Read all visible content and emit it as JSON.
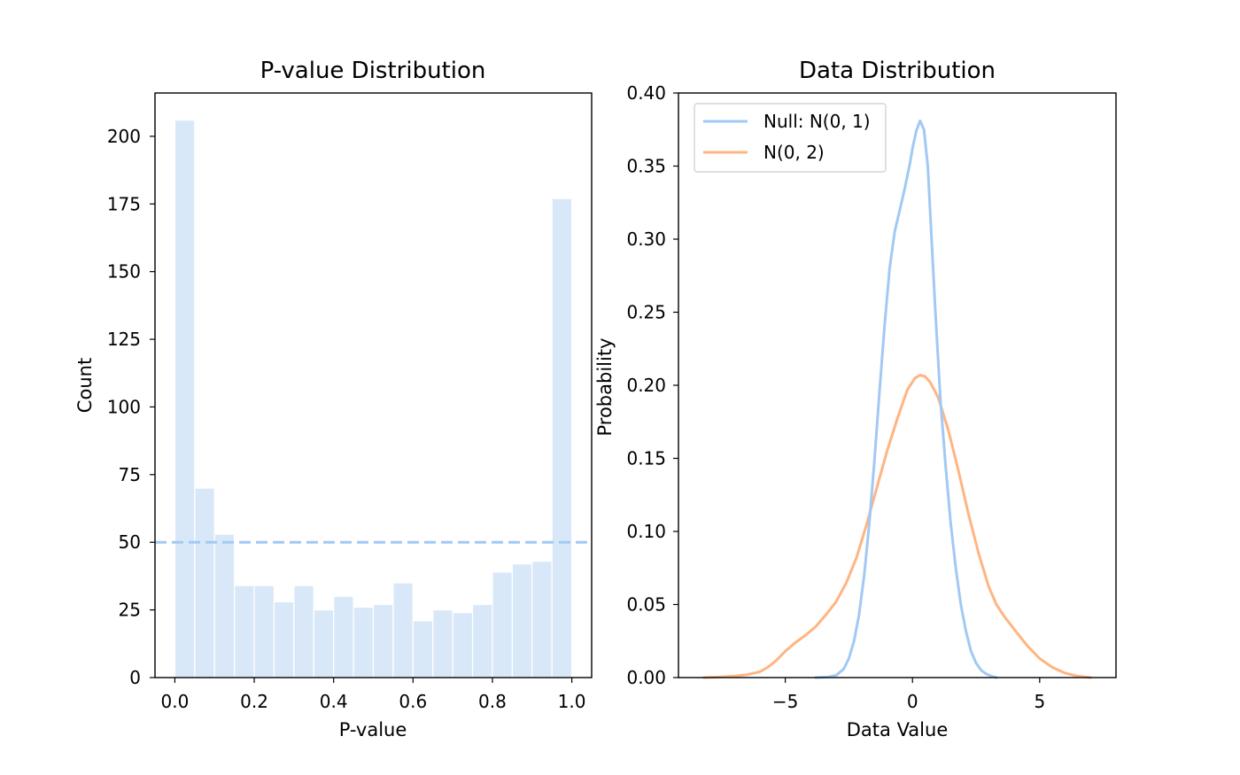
{
  "chart_data": [
    {
      "type": "bar",
      "title": "P-value Distribution",
      "xlabel": "P-value",
      "ylabel": "Count",
      "xlim": [
        -0.05,
        1.05
      ],
      "ylim": [
        0,
        216
      ],
      "xticks": [
        "0.0",
        "0.2",
        "0.4",
        "0.6",
        "0.8",
        "1.0"
      ],
      "xtick_values": [
        0.0,
        0.2,
        0.4,
        0.6,
        0.8,
        1.0
      ],
      "yticks": [
        "0",
        "25",
        "50",
        "75",
        "100",
        "125",
        "150",
        "175",
        "200"
      ],
      "ytick_values": [
        0,
        25,
        50,
        75,
        100,
        125,
        150,
        175,
        200
      ],
      "bin_edges": [
        0.0,
        0.05,
        0.1,
        0.15,
        0.2,
        0.25,
        0.3,
        0.35,
        0.4,
        0.45,
        0.5,
        0.55,
        0.6,
        0.65,
        0.7,
        0.75,
        0.8,
        0.85,
        0.9,
        0.95,
        1.0
      ],
      "values": [
        206,
        70,
        53,
        34,
        34,
        28,
        34,
        25,
        30,
        26,
        27,
        35,
        21,
        25,
        24,
        27,
        39,
        42,
        43,
        177
      ],
      "reference_line": {
        "y": 50,
        "style": "dashed"
      },
      "bar_color": "#d9e8f8",
      "line_color": "#a1c9f4",
      "grid": false
    },
    {
      "type": "line",
      "title": "Data Distribution",
      "xlabel": "Data Value",
      "ylabel": "Probability",
      "xlim": [
        -9.2,
        8.0
      ],
      "ylim": [
        0,
        0.4
      ],
      "xticks": [
        "−5",
        "0",
        "5"
      ],
      "xtick_values": [
        -5,
        0,
        5
      ],
      "yticks": [
        "0.00",
        "0.05",
        "0.10",
        "0.15",
        "0.20",
        "0.25",
        "0.30",
        "0.35",
        "0.40"
      ],
      "ytick_values": [
        0,
        0.05,
        0.1,
        0.15,
        0.2,
        0.25,
        0.3,
        0.35,
        0.4
      ],
      "legend_position": "top-left",
      "grid": false,
      "series": [
        {
          "name": "Null: N(0, 1)",
          "color": "#a1c9f4",
          "x": [
            -3.8,
            -3.3,
            -3.0,
            -2.7,
            -2.5,
            -2.3,
            -2.1,
            -1.9,
            -1.7,
            -1.5,
            -1.3,
            -1.1,
            -0.9,
            -0.7,
            -0.5,
            -0.3,
            -0.1,
            0.0,
            0.15,
            0.3,
            0.45,
            0.6,
            0.75,
            0.9,
            1.1,
            1.3,
            1.5,
            1.7,
            1.9,
            2.1,
            2.3,
            2.5,
            2.7,
            2.9,
            3.1,
            3.3
          ],
          "y": [
            0.0,
            0.0005,
            0.0015,
            0.006,
            0.013,
            0.025,
            0.043,
            0.07,
            0.105,
            0.148,
            0.195,
            0.24,
            0.28,
            0.305,
            0.32,
            0.335,
            0.352,
            0.362,
            0.374,
            0.381,
            0.375,
            0.35,
            0.3,
            0.25,
            0.19,
            0.145,
            0.106,
            0.075,
            0.05,
            0.032,
            0.018,
            0.01,
            0.005,
            0.0025,
            0.001,
            0.0
          ]
        },
        {
          "name": "N(0, 2)",
          "color": "#ffb482",
          "x": [
            -8.2,
            -7.5,
            -7.0,
            -6.5,
            -6.0,
            -5.7,
            -5.4,
            -5.0,
            -4.6,
            -4.2,
            -3.8,
            -3.4,
            -3.0,
            -2.6,
            -2.2,
            -1.8,
            -1.4,
            -1.0,
            -0.6,
            -0.2,
            0.1,
            0.3,
            0.5,
            0.7,
            1.0,
            1.4,
            1.8,
            2.2,
            2.6,
            3.0,
            3.3,
            3.6,
            4.0,
            4.5,
            5.0,
            5.5,
            6.0,
            6.5,
            7.0
          ],
          "y": [
            0.0,
            0.0005,
            0.001,
            0.002,
            0.004,
            0.007,
            0.011,
            0.018,
            0.024,
            0.029,
            0.035,
            0.043,
            0.052,
            0.065,
            0.082,
            0.105,
            0.13,
            0.155,
            0.177,
            0.197,
            0.205,
            0.207,
            0.206,
            0.202,
            0.192,
            0.17,
            0.142,
            0.112,
            0.085,
            0.062,
            0.05,
            0.042,
            0.033,
            0.022,
            0.013,
            0.007,
            0.003,
            0.001,
            0.0
          ]
        }
      ]
    }
  ]
}
